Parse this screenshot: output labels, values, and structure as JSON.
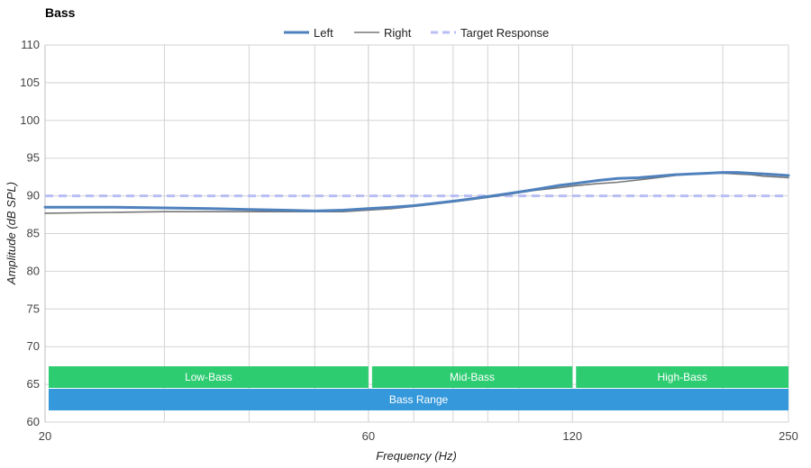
{
  "chart_data": {
    "type": "line",
    "title": "Bass",
    "xlabel": "Frequency (Hz)",
    "ylabel": "Amplitude (dB SPL)",
    "xscale": "log",
    "xlim": [
      20,
      250
    ],
    "ylim": [
      60,
      110
    ],
    "x_ticks": [
      20,
      60,
      120,
      250
    ],
    "y_ticks": [
      60,
      65,
      70,
      75,
      80,
      85,
      90,
      95,
      100,
      105,
      110
    ],
    "grid": true,
    "legend_position": "top-center",
    "series": [
      {
        "name": "Left",
        "color": "#4f81bd",
        "style": "solid-thick",
        "x": [
          20,
          25,
          30,
          35,
          40,
          45,
          50,
          55,
          60,
          65,
          70,
          75,
          80,
          85,
          90,
          95,
          100,
          105,
          110,
          115,
          120,
          130,
          140,
          150,
          160,
          170,
          180,
          190,
          200,
          210,
          220,
          230,
          240,
          250
        ],
        "y": [
          88.5,
          88.5,
          88.4,
          88.3,
          88.2,
          88.1,
          88.0,
          88.1,
          88.3,
          88.5,
          88.7,
          89.0,
          89.3,
          89.6,
          89.9,
          90.2,
          90.5,
          90.8,
          91.1,
          91.4,
          91.6,
          92.0,
          92.3,
          92.4,
          92.6,
          92.8,
          92.9,
          93.0,
          93.1,
          93.1,
          93.0,
          92.9,
          92.8,
          92.7
        ]
      },
      {
        "name": "Right",
        "color": "#777777",
        "style": "solid-thin",
        "x": [
          20,
          25,
          30,
          35,
          40,
          45,
          50,
          55,
          60,
          65,
          70,
          75,
          80,
          85,
          90,
          95,
          100,
          105,
          110,
          115,
          120,
          130,
          140,
          150,
          160,
          170,
          180,
          190,
          200,
          210,
          220,
          230,
          240,
          250
        ],
        "y": [
          87.7,
          87.8,
          87.9,
          87.9,
          87.9,
          87.9,
          87.9,
          87.9,
          88.1,
          88.3,
          88.6,
          88.9,
          89.2,
          89.5,
          89.8,
          90.1,
          90.4,
          90.7,
          90.9,
          91.1,
          91.3,
          91.6,
          91.8,
          92.1,
          92.4,
          92.7,
          92.9,
          93.0,
          93.0,
          92.9,
          92.8,
          92.6,
          92.5,
          92.4
        ]
      },
      {
        "name": "Target Response",
        "color": "#b8bdf5",
        "style": "dashed",
        "x": [
          20,
          250
        ],
        "y": [
          90,
          90
        ]
      }
    ],
    "bands": [
      {
        "label": "Low-Bass",
        "from": 20,
        "to": 60,
        "color": "#2ecc71",
        "row": 0
      },
      {
        "label": "Mid-Bass",
        "from": 60,
        "to": 120,
        "color": "#2ecc71",
        "row": 0
      },
      {
        "label": "High-Bass",
        "from": 120,
        "to": 250,
        "color": "#2ecc71",
        "row": 0
      },
      {
        "label": "Bass Range",
        "from": 20,
        "to": 250,
        "color": "#3498db",
        "row": 1
      }
    ]
  }
}
